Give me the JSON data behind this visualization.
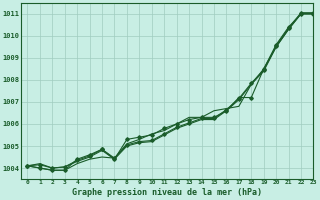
{
  "title": "Graphe pression niveau de la mer (hPa)",
  "background_color": "#c8eee4",
  "grid_color": "#a0ccc0",
  "line_color": "#1a5c2a",
  "xlim": [
    -0.5,
    23
  ],
  "ylim": [
    1003.5,
    1011.5
  ],
  "yticks": [
    1004,
    1005,
    1006,
    1007,
    1008,
    1009,
    1010,
    1011
  ],
  "xticks": [
    0,
    1,
    2,
    3,
    4,
    5,
    6,
    7,
    8,
    9,
    10,
    11,
    12,
    13,
    14,
    15,
    16,
    17,
    18,
    19,
    20,
    21,
    22,
    23
  ],
  "series": [
    {
      "x": [
        0,
        1,
        2,
        3,
        4,
        5,
        6,
        7,
        8,
        9,
        10,
        11,
        12,
        13,
        14,
        15,
        16,
        17,
        18,
        19,
        20,
        21,
        22,
        23
      ],
      "y": [
        1004.1,
        1004.2,
        1004.0,
        1004.05,
        1004.3,
        1004.5,
        1004.8,
        1004.4,
        1005.0,
        1005.15,
        1005.2,
        1005.5,
        1005.8,
        1006.0,
        1006.2,
        1006.2,
        1006.6,
        1007.1,
        1007.8,
        1008.4,
        1009.5,
        1010.3,
        1011.0,
        1011.0
      ],
      "has_markers": false,
      "linewidth": 0.8
    },
    {
      "x": [
        0,
        1,
        2,
        3,
        4,
        5,
        6,
        7,
        8,
        9,
        10,
        11,
        12,
        13,
        14,
        15,
        16,
        17,
        18,
        19,
        20,
        21,
        22,
        23
      ],
      "y": [
        1004.1,
        1004.0,
        1003.9,
        1003.9,
        1004.2,
        1004.4,
        1004.5,
        1004.45,
        1005.1,
        1005.3,
        1005.55,
        1005.7,
        1006.0,
        1006.3,
        1006.3,
        1006.6,
        1006.7,
        1006.8,
        1007.8,
        1008.5,
        1009.5,
        1010.3,
        1011.0,
        1011.0
      ],
      "has_markers": false,
      "linewidth": 0.8
    },
    {
      "x": [
        0,
        1,
        2,
        3,
        4,
        5,
        6,
        7,
        8,
        9,
        10,
        11,
        12,
        13,
        14,
        15,
        16,
        17,
        18,
        19,
        20,
        21,
        22,
        23
      ],
      "y": [
        1004.1,
        1004.0,
        1003.9,
        1003.9,
        1004.4,
        1004.6,
        1004.85,
        1004.4,
        1005.3,
        1005.4,
        1005.5,
        1005.8,
        1006.0,
        1006.2,
        1006.3,
        1006.3,
        1006.6,
        1007.2,
        1007.2,
        1008.5,
        1009.6,
        1010.4,
        1011.0,
        1011.0
      ],
      "has_markers": true,
      "linewidth": 0.8
    },
    {
      "x": [
        0,
        1,
        2,
        3,
        4,
        5,
        6,
        7,
        8,
        9,
        10,
        11,
        12,
        13,
        14,
        15,
        16,
        17,
        18,
        19,
        20,
        21,
        22,
        23
      ],
      "y": [
        1004.1,
        1004.15,
        1004.0,
        1004.05,
        1004.35,
        1004.55,
        1004.85,
        1004.45,
        1005.05,
        1005.2,
        1005.25,
        1005.55,
        1005.85,
        1006.05,
        1006.25,
        1006.25,
        1006.65,
        1007.15,
        1007.85,
        1008.45,
        1009.55,
        1010.35,
        1011.05,
        1011.05
      ],
      "has_markers": true,
      "linewidth": 0.8
    }
  ],
  "fig_width": 3.2,
  "fig_height": 2.0,
  "dpi": 100
}
